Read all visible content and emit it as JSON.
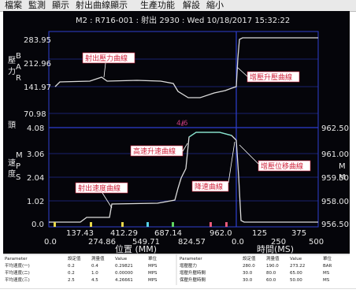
{
  "menu": {
    "items": [
      "檔案",
      "監測",
      "顯示",
      "射出曲線顯示",
      "生產功能",
      "解設",
      "縮小"
    ]
  },
  "header": {
    "info": "M2 : R716-001 : 射出 2930 : Wed  10/18/2017  15:32:22"
  },
  "pressure_axis": {
    "ticks": [
      "283.95",
      "212.96",
      "141.97",
      "70.98"
    ],
    "label": "壓力BAR"
  },
  "speed_axis": {
    "ticks": [
      "4.08",
      "3.06",
      "2.04",
      "1.02",
      "0.0"
    ],
    "label": "速度MPS"
  },
  "right_axis": {
    "ticks": [
      "962.50",
      "961.00",
      "959.50",
      "958.00",
      "956.50"
    ],
    "label": "MM"
  },
  "position_axis": {
    "ticks_upper": [
      "137.43",
      "412.29",
      "687.14",
      "962.0"
    ],
    "ticks_lower": [
      "0.0",
      "274.86",
      "549.71",
      "824.57"
    ],
    "label": "位置 (MM)"
  },
  "time_axis": {
    "ticks_upper": [
      "125",
      "375"
    ],
    "ticks_lower": [
      "0.0",
      "250",
      "500"
    ],
    "label": "時間(MS)"
  },
  "annotations": {
    "pressure_curve": "射出壓力曲線",
    "hold_pressure_curve": "增壓升壓曲線",
    "speed_curve": "射出速度曲線",
    "high_speed_up": "高速升速曲線",
    "decel_curve": "降速曲線",
    "hold_position_curve": "增壓位移曲線",
    "marker_label": "4/6"
  },
  "table": {
    "left_header": [
      "Parameter",
      "設定值",
      "測量值",
      "Value",
      "單位"
    ],
    "left_rows": [
      [
        "平均速度(一)",
        "0.2",
        "0.4",
        "0.29821",
        "MPS"
      ],
      [
        "平均速度(二)",
        "0.2",
        "1.0",
        "0.00000",
        "MPS"
      ],
      [
        "平均速度(三)",
        "2.5",
        "4.5",
        "4.26661",
        "MPS"
      ]
    ],
    "right_header": [
      "Parameter",
      "設定值",
      "測量值",
      "Value",
      "單位"
    ],
    "right_rows": [
      [
        "增壓壓力",
        "280.0",
        "190.0",
        "273.22",
        "BAR"
      ],
      [
        "增壓升壓時間",
        "30.0",
        "80.0",
        "65.00",
        "MS"
      ],
      [
        "保壓升壓時間",
        "30.0",
        "60.0",
        "50.00",
        "MS"
      ]
    ]
  },
  "colors": {
    "screen_bg": "#05050a",
    "grid": "#2e3fd0",
    "axis_text": "#e8e8e8",
    "curve": "#dcdcdc",
    "speed_curve": "#7fe6cf",
    "annotation_bg": "#ffffff",
    "annotation_text": "#d0203a",
    "annotation_arrow": "#ffffff",
    "marker_line": "#c23a7a"
  }
}
